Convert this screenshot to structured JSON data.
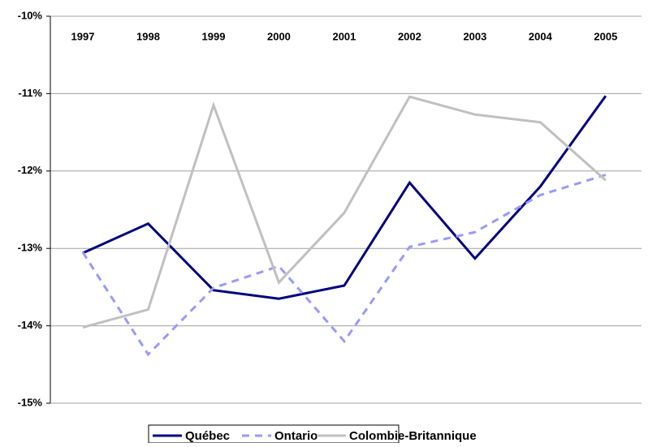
{
  "chart_data": {
    "type": "line",
    "categories": [
      "1997",
      "1998",
      "1999",
      "2000",
      "2001",
      "2002",
      "2003",
      "2004",
      "2005"
    ],
    "series": [
      {
        "name": "Québec",
        "color": "#000080",
        "values": [
          -13.06,
          -12.68,
          -13.54,
          -13.65,
          -13.48,
          -12.15,
          -13.13,
          -12.2,
          -11.03
        ]
      },
      {
        "name": "Ontario",
        "color": "#9999ff",
        "values": [
          -13.05,
          -14.37,
          -13.51,
          -13.23,
          -14.2,
          -12.98,
          -12.79,
          -12.31,
          -12.05
        ]
      },
      {
        "name": "Colombie-Britannique",
        "color": "#c0c0c0",
        "values": [
          -14.02,
          -13.79,
          -11.15,
          -13.44,
          -12.54,
          -11.04,
          -11.27,
          -11.37,
          -12.12
        ]
      }
    ],
    "ylim": [
      -15,
      -10
    ],
    "yticks": [
      {
        "value": -15,
        "label": "-15%"
      },
      {
        "value": -14,
        "label": "-14%"
      },
      {
        "value": -13,
        "label": "-13%"
      },
      {
        "value": -12,
        "label": "-12%"
      },
      {
        "value": -11,
        "label": "-11%"
      },
      {
        "value": -10,
        "label": "-10%"
      }
    ],
    "grid": true
  }
}
